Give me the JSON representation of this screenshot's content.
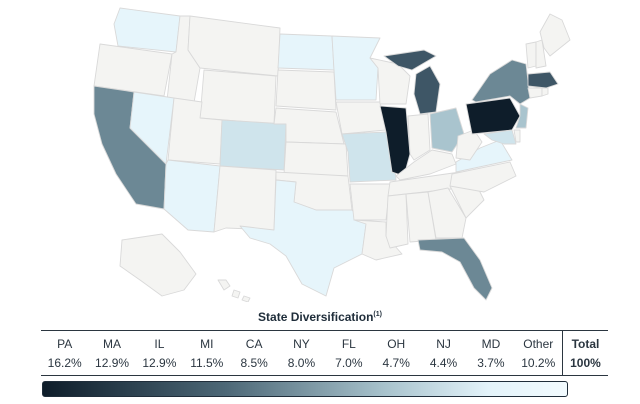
{
  "title": "State Diversification",
  "title_note": "(1)",
  "states": [
    {
      "code": "PA",
      "pct": "16.2%"
    },
    {
      "code": "MA",
      "pct": "12.9%"
    },
    {
      "code": "IL",
      "pct": "12.9%"
    },
    {
      "code": "MI",
      "pct": "11.5%"
    },
    {
      "code": "CA",
      "pct": "8.5%"
    },
    {
      "code": "NY",
      "pct": "8.0%"
    },
    {
      "code": "FL",
      "pct": "7.0%"
    },
    {
      "code": "OH",
      "pct": "4.7%"
    },
    {
      "code": "NJ",
      "pct": "4.4%"
    },
    {
      "code": "MD",
      "pct": "3.7%"
    },
    {
      "code": "Other",
      "pct": "10.2%"
    }
  ],
  "total": {
    "label": "Total",
    "pct": "100%"
  },
  "colors": {
    "darkest": "#0e1d2a",
    "dark": "#3e5666",
    "mid": "#6c8895",
    "light": "#a9c4ce",
    "lighter": "#cfe4ec",
    "lightest": "#e6f5fb",
    "none": "#f4f4f2"
  }
}
